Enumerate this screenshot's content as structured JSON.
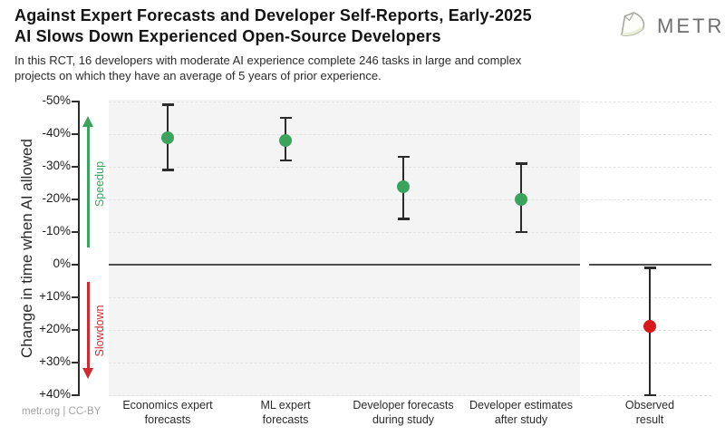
{
  "header": {
    "title_lines": [
      "Against Expert Forecasts and Developer Self-Reports, Early-2025",
      "AI Slows Down Experienced Open-Source Developers"
    ],
    "subtitle_lines": [
      "In this RCT, 16 developers with moderate AI experience complete 246 tasks in large and complex",
      "projects on which they have an average of 5 years of prior experience."
    ],
    "logo_text": "METR"
  },
  "footer": {
    "attribution": "metr.org | CC-BY"
  },
  "chart_data": {
    "type": "scatter",
    "title": "Against Expert Forecasts and Developer Self-Reports, Early-2025 AI Slows Down Experienced Open-Source Developers",
    "ylabel": "Change in time when AI allowed",
    "units": "%",
    "y_axis_inverted": true,
    "ylim": [
      -50,
      40
    ],
    "ytick_values": [
      -50,
      -40,
      -30,
      -20,
      -10,
      0,
      10,
      20,
      30,
      40
    ],
    "ytick_labels": [
      "-50%",
      "-40%",
      "-30%",
      "-20%",
      "-10%",
      "0%",
      "+10%",
      "+20%",
      "+30%",
      "+40%"
    ],
    "grid": "dashed horizontal line every 10%, solid dark line at 0%",
    "legend": "none",
    "zero_line": true,
    "annotations": [
      {
        "text": "Speedup",
        "direction": "up",
        "color": "#3aa45c",
        "span": [
          -40,
          -5
        ]
      },
      {
        "text": "Slowdown",
        "direction": "down",
        "color": "#cf2a2e",
        "span": [
          5,
          35
        ]
      }
    ],
    "points": [
      {
        "category": [
          "Economics expert",
          "forecasts"
        ],
        "value": -39,
        "ci": [
          -49,
          -29
        ],
        "color": "#3aa45c",
        "panel": "forecasts"
      },
      {
        "category": [
          "ML expert",
          "forecasts"
        ],
        "value": -38,
        "ci": [
          -45,
          -32
        ],
        "color": "#3aa45c",
        "panel": "forecasts"
      },
      {
        "category": [
          "Developer forecasts",
          "during study"
        ],
        "value": -24,
        "ci": [
          -33,
          -14
        ],
        "color": "#3aa45c",
        "panel": "forecasts"
      },
      {
        "category": [
          "Developer estimates",
          "after study"
        ],
        "value": -20,
        "ci": [
          -31,
          -10
        ],
        "color": "#3aa45c",
        "panel": "forecasts"
      },
      {
        "category": [
          "Observed",
          "result"
        ],
        "value": 19,
        "ci": [
          1,
          40
        ],
        "color": "#d7191c",
        "panel": "observed"
      }
    ]
  },
  "colors": {
    "green": "#3aa45c",
    "red": "#d7191c",
    "errorbar": "#2b2b2b",
    "panel_gray": "#f4f4f4",
    "gridline": "#e2e2e2",
    "zero_line": "#4e4e4e"
  }
}
